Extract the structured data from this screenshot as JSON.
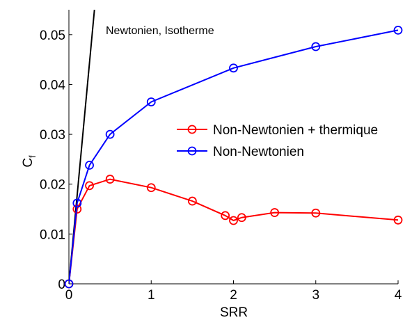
{
  "chart_data": {
    "type": "line",
    "xlabel": "SRR",
    "ylabel": "C",
    "ylabel_subscript": "f",
    "xlim": [
      0,
      4
    ],
    "ylim": [
      0,
      0.055
    ],
    "xticks": [
      0,
      1,
      2,
      3,
      4
    ],
    "xtick_labels": [
      "0",
      "1",
      "2",
      "3",
      "4"
    ],
    "yticks": [
      0,
      0.01,
      0.02,
      0.03,
      0.04,
      0.05
    ],
    "ytick_labels": [
      "0",
      "0.01",
      "0.02",
      "0.03",
      "0.04",
      "0.05"
    ],
    "grid": false,
    "legend_position": "right",
    "series": [
      {
        "name": "Non-Newtonien + thermique",
        "color": "#ff0000",
        "marker": "circle",
        "x": [
          0,
          0.1,
          0.25,
          0.5,
          1,
          1.5,
          1.9,
          2.0,
          2.1,
          2.5,
          3,
          4
        ],
        "y": [
          0,
          0.015,
          0.0197,
          0.021,
          0.0193,
          0.0166,
          0.0137,
          0.0127,
          0.0133,
          0.0143,
          0.0142,
          0.0128
        ]
      },
      {
        "name": "Non-Newtonien",
        "color": "#0000ff",
        "marker": "circle",
        "x": [
          0,
          0.1,
          0.25,
          0.5,
          1,
          2,
          3,
          4
        ],
        "y": [
          0,
          0.0162,
          0.0238,
          0.03,
          0.0365,
          0.0433,
          0.0476,
          0.0509
        ]
      },
      {
        "name": "",
        "color": "#000000",
        "marker": "none",
        "x": [
          0,
          0.31
        ],
        "y": [
          0,
          0.055
        ]
      }
    ],
    "annotations": [
      {
        "text": "Newtonien, Isotherme"
      }
    ]
  }
}
